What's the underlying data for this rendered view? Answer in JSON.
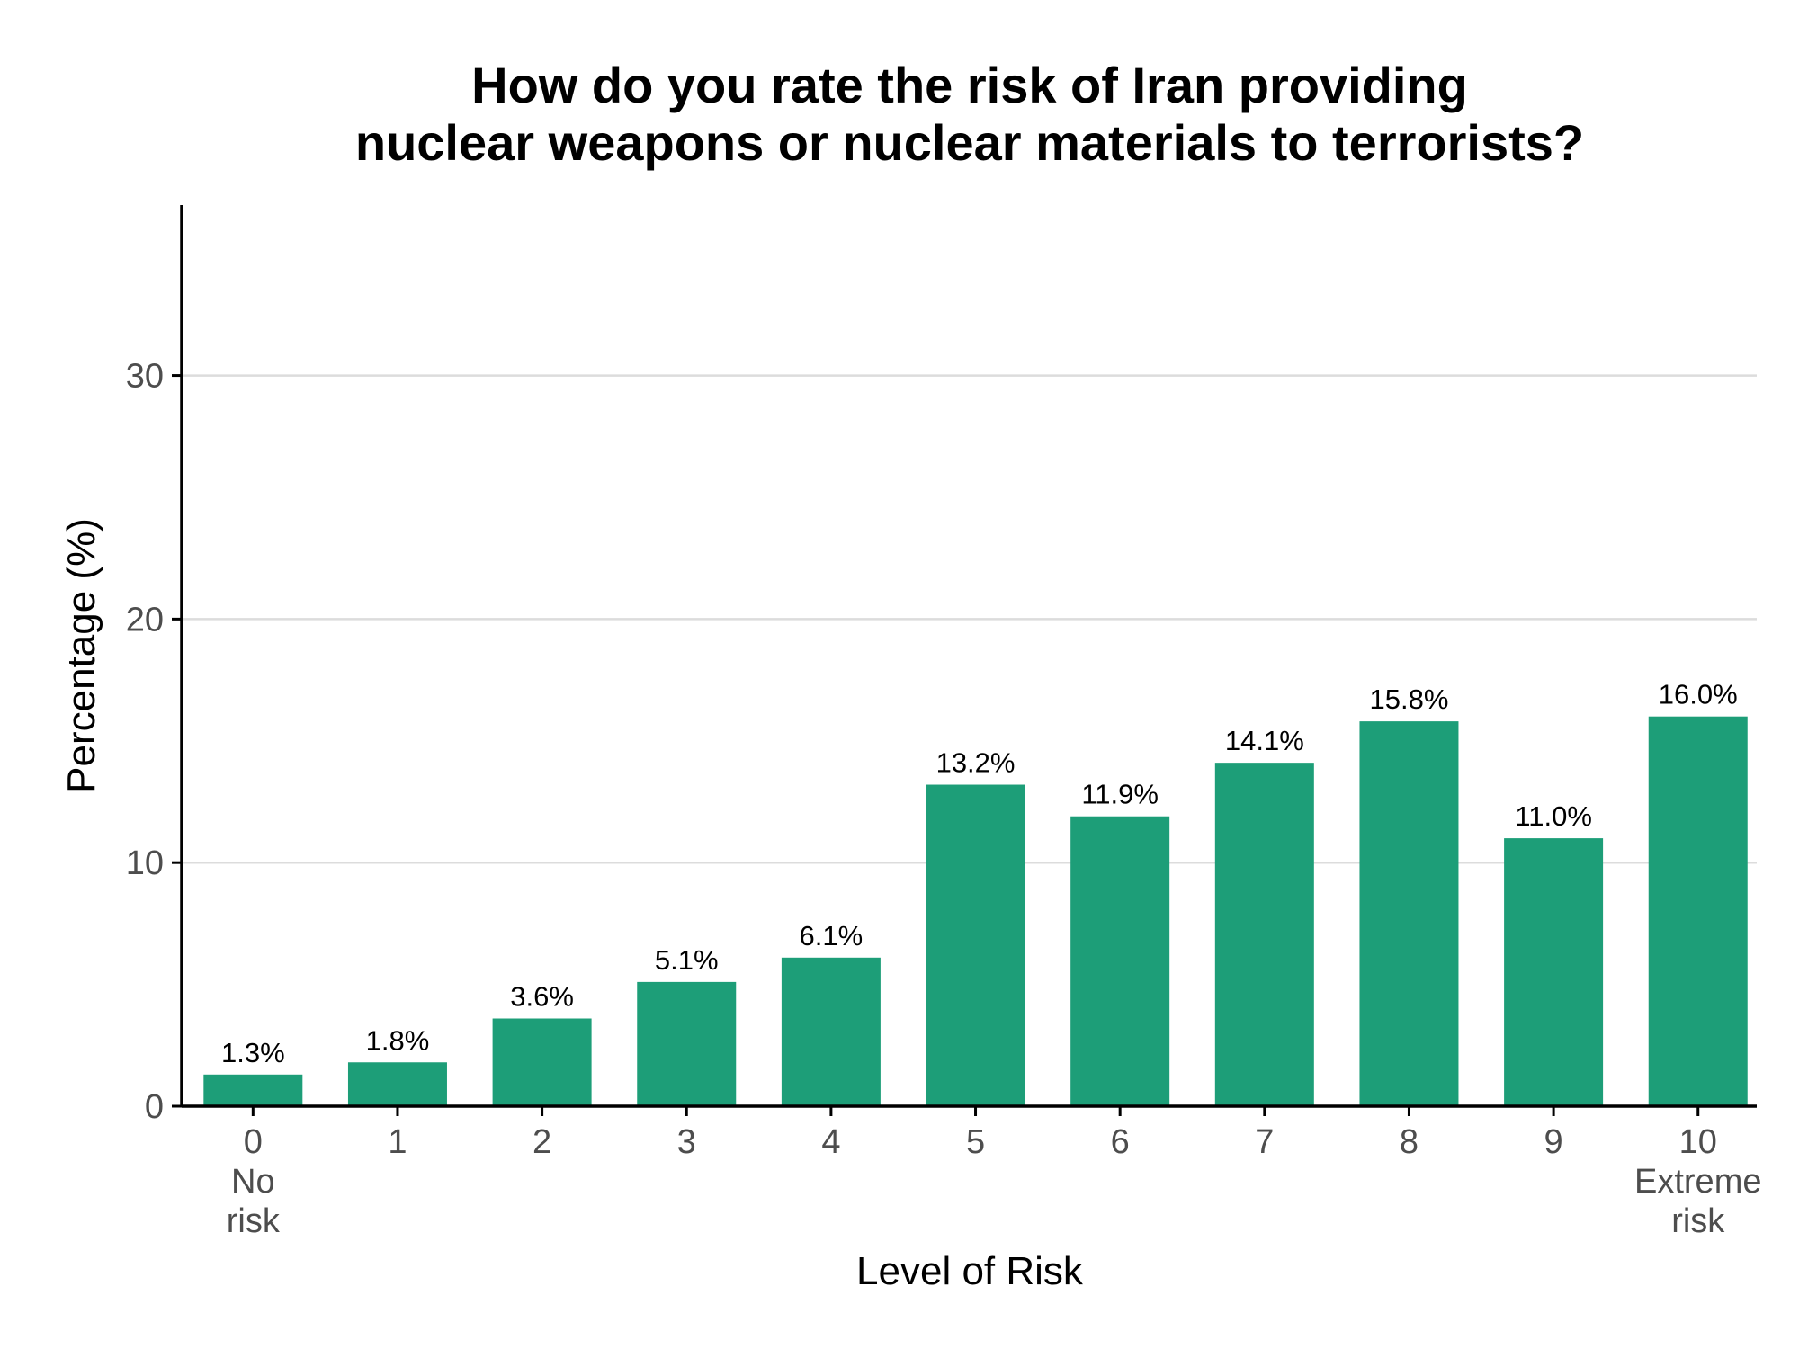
{
  "chart_data": {
    "type": "bar",
    "title_lines": [
      "How do you rate the risk of Iran providing",
      "nuclear weapons or nuclear materials to terrorists?"
    ],
    "xlabel": "Level of Risk",
    "ylabel": "Percentage (%)",
    "categories": [
      "0",
      "1",
      "2",
      "3",
      "4",
      "5",
      "6",
      "7",
      "8",
      "9",
      "10"
    ],
    "category_sublabels": {
      "0": [
        "No",
        "risk"
      ],
      "10": [
        "Extreme",
        "risk"
      ]
    },
    "values": [
      1.3,
      1.8,
      3.6,
      5.1,
      6.1,
      13.2,
      11.9,
      14.1,
      15.8,
      11.0,
      16.0
    ],
    "data_labels": [
      "1.3%",
      "1.8%",
      "3.6%",
      "5.1%",
      "6.1%",
      "13.2%",
      "11.9%",
      "14.1%",
      "15.8%",
      "11.0%",
      "16.0%"
    ],
    "yticks": [
      0,
      10,
      20,
      30
    ],
    "ylim": [
      0,
      37
    ],
    "grid": "horizontal major",
    "legend": "none",
    "bar_color": "#1d9e78"
  }
}
